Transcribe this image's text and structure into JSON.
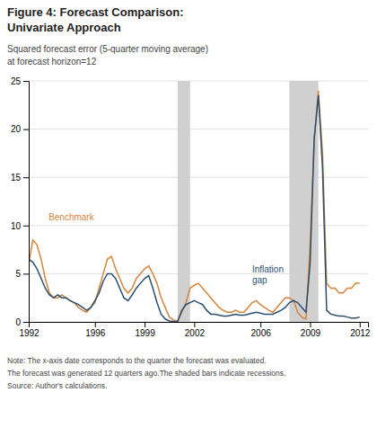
{
  "chart_data": {
    "type": "line",
    "title": [
      "Figure 4: Forecast Comparison:",
      "Univariate Approach"
    ],
    "subtitle": [
      "Squared forecast error (5-quarter moving average)",
      "at forecast horizon=12"
    ],
    "note": [
      "Note: The x-axis date corresponds to the quarter the forecast was evaluated.",
      "The forecast was generated 12 quarters ago.The shaded bars indicate recessions.",
      "Source: Author's calculations."
    ],
    "xlim": [
      1992,
      2012.5
    ],
    "ylim": [
      0,
      25
    ],
    "xticks": [
      1992,
      1996,
      1999,
      2002,
      2006,
      2009,
      2012
    ],
    "yticks": [
      0,
      5,
      10,
      15,
      20,
      25
    ],
    "grid": true,
    "recession_bands": {
      "color": "#d0d0d0",
      "ranges": [
        [
          2001.0,
          2001.75
        ],
        [
          2007.75,
          2009.5
        ]
      ]
    },
    "x": [
      1992.0,
      1992.25,
      1992.5,
      1992.75,
      1993.0,
      1993.25,
      1993.5,
      1993.75,
      1994.0,
      1994.25,
      1994.5,
      1994.75,
      1995.0,
      1995.25,
      1995.5,
      1995.75,
      1996.0,
      1996.25,
      1996.5,
      1996.75,
      1997.0,
      1997.25,
      1997.5,
      1997.75,
      1998.0,
      1998.25,
      1998.5,
      1998.75,
      1999.0,
      1999.25,
      1999.5,
      1999.75,
      2000.0,
      2000.25,
      2000.5,
      2000.75,
      2001.0,
      2001.25,
      2001.5,
      2001.75,
      2002.0,
      2002.25,
      2002.5,
      2002.75,
      2003.0,
      2003.25,
      2003.5,
      2003.75,
      2004.0,
      2004.25,
      2004.5,
      2004.75,
      2005.0,
      2005.25,
      2005.5,
      2005.75,
      2006.0,
      2006.25,
      2006.5,
      2006.75,
      2007.0,
      2007.25,
      2007.5,
      2007.75,
      2008.0,
      2008.25,
      2008.5,
      2008.75,
      2009.0,
      2009.25,
      2009.5,
      2009.75,
      2010.0,
      2010.25,
      2010.5,
      2010.75,
      2011.0,
      2011.25,
      2011.5,
      2011.75,
      2012.0
    ],
    "series": [
      {
        "color": "#d4843b",
        "values": [
          6.0,
          8.5,
          8.0,
          6.5,
          4.5,
          3.0,
          2.5,
          2.5,
          2.8,
          2.5,
          2.2,
          2.0,
          1.5,
          1.2,
          1.0,
          1.5,
          2.0,
          3.5,
          5.0,
          6.5,
          6.8,
          5.5,
          4.5,
          3.5,
          3.0,
          3.5,
          4.5,
          5.0,
          5.5,
          5.8,
          5.0,
          4.0,
          2.5,
          1.5,
          0.5,
          0.2,
          0.1,
          1.0,
          2.0,
          3.5,
          3.8,
          4.0,
          3.5,
          3.0,
          2.5,
          2.0,
          1.5,
          1.2,
          1.0,
          1.0,
          1.2,
          1.0,
          1.0,
          1.5,
          2.0,
          2.2,
          1.8,
          1.5,
          1.2,
          1.0,
          1.5,
          2.0,
          2.5,
          2.5,
          2.2,
          1.0,
          0.5,
          0.3,
          8.0,
          19.0,
          24.0,
          17.5,
          4.0,
          3.5,
          3.5,
          3.0,
          3.0,
          3.5,
          3.5,
          4.0,
          4.0
        ]
      },
      {
        "color": "#2c4f6e",
        "values": [
          6.5,
          6.2,
          5.5,
          4.5,
          3.5,
          2.8,
          2.5,
          2.8,
          2.5,
          2.5,
          2.2,
          2.0,
          1.8,
          1.5,
          1.2,
          1.5,
          2.2,
          3.0,
          4.2,
          5.0,
          5.0,
          4.5,
          3.5,
          2.5,
          2.2,
          2.8,
          3.5,
          4.0,
          4.5,
          4.8,
          3.5,
          2.0,
          0.8,
          0.3,
          0.1,
          0.05,
          0.05,
          1.2,
          1.8,
          2.0,
          2.2,
          2.0,
          1.8,
          1.2,
          0.8,
          0.8,
          0.7,
          0.6,
          0.6,
          0.7,
          0.8,
          0.7,
          0.7,
          0.8,
          0.9,
          1.0,
          0.9,
          0.8,
          0.8,
          0.8,
          1.0,
          1.2,
          1.5,
          2.0,
          2.2,
          2.0,
          1.5,
          1.0,
          6.0,
          19.0,
          23.5,
          16.0,
          1.2,
          0.8,
          0.7,
          0.6,
          0.6,
          0.5,
          0.4,
          0.4,
          0.5
        ]
      }
    ],
    "annotations": [
      {
        "text": "Benchmark",
        "x": 1993.2,
        "y": 10.8,
        "color": "#d4843b"
      },
      {
        "text": "Inflation\ngap",
        "x": 2005.5,
        "y": 4.8,
        "color": "#2c4f6e"
      }
    ]
  }
}
